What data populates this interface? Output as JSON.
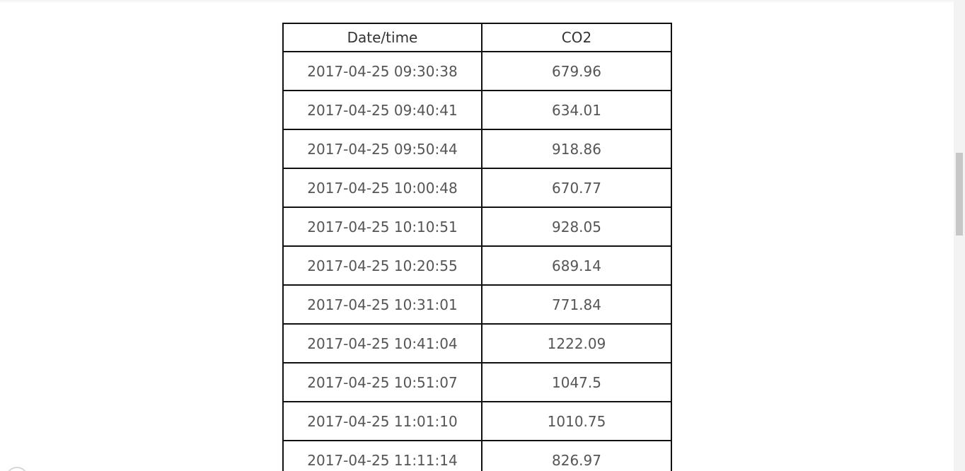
{
  "table": {
    "headers": [
      "Date/time",
      "CO2"
    ],
    "rows": [
      [
        "2017-04-25 09:30:38",
        "679.96"
      ],
      [
        "2017-04-25 09:40:41",
        "634.01"
      ],
      [
        "2017-04-25 09:50:44",
        "918.86"
      ],
      [
        "2017-04-25 10:00:48",
        "670.77"
      ],
      [
        "2017-04-25 10:10:51",
        "928.05"
      ],
      [
        "2017-04-25 10:20:55",
        "689.14"
      ],
      [
        "2017-04-25 10:31:01",
        "771.84"
      ],
      [
        "2017-04-25 10:41:04",
        "1222.09"
      ],
      [
        "2017-04-25 10:51:07",
        "1047.5"
      ],
      [
        "2017-04-25 11:01:10",
        "1010.75"
      ],
      [
        "2017-04-25 11:11:14",
        "826.97"
      ]
    ]
  },
  "colors": {
    "border": "#111111",
    "header_text": "#333333",
    "cell_text": "#555555",
    "scroll_thumb": "#c7c7c7"
  }
}
